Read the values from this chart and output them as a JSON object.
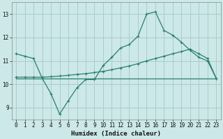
{
  "x": [
    0,
    1,
    2,
    3,
    4,
    5,
    6,
    7,
    8,
    9,
    10,
    11,
    12,
    13,
    14,
    15,
    16,
    17,
    18,
    19,
    20,
    21,
    22,
    23
  ],
  "line1": [
    11.3,
    11.2,
    11.1,
    10.25,
    9.6,
    8.72,
    9.3,
    9.85,
    10.2,
    10.2,
    10.8,
    11.15,
    11.55,
    11.7,
    12.05,
    13.0,
    13.1,
    12.3,
    12.1,
    11.8,
    11.45,
    11.15,
    11.0,
    10.25
  ],
  "line2": [
    10.3,
    10.3,
    10.3,
    10.3,
    10.32,
    10.35,
    10.38,
    10.42,
    10.45,
    10.5,
    10.55,
    10.62,
    10.7,
    10.78,
    10.88,
    11.0,
    11.1,
    11.2,
    11.3,
    11.4,
    11.5,
    11.3,
    11.1,
    10.25
  ],
  "line3": [
    10.25,
    10.25,
    10.25,
    10.25,
    10.25,
    10.25,
    10.25,
    10.25,
    10.25,
    10.25,
    10.25,
    10.25,
    10.25,
    10.25,
    10.25,
    10.25,
    10.25,
    10.25,
    10.25,
    10.25,
    10.25,
    10.25,
    10.25,
    10.25
  ],
  "color": "#2a7d6e",
  "bg_color": "#cce8e8",
  "grid_color": "#aacccc",
  "xlabel": "Humidex (Indice chaleur)",
  "xlim": [
    -0.5,
    23.5
  ],
  "ylim": [
    8.5,
    13.5
  ],
  "yticks": [
    9,
    10,
    11,
    12,
    13
  ],
  "xticks": [
    0,
    1,
    2,
    3,
    4,
    5,
    6,
    7,
    8,
    9,
    10,
    11,
    12,
    13,
    14,
    15,
    16,
    17,
    18,
    19,
    20,
    21,
    22,
    23
  ]
}
